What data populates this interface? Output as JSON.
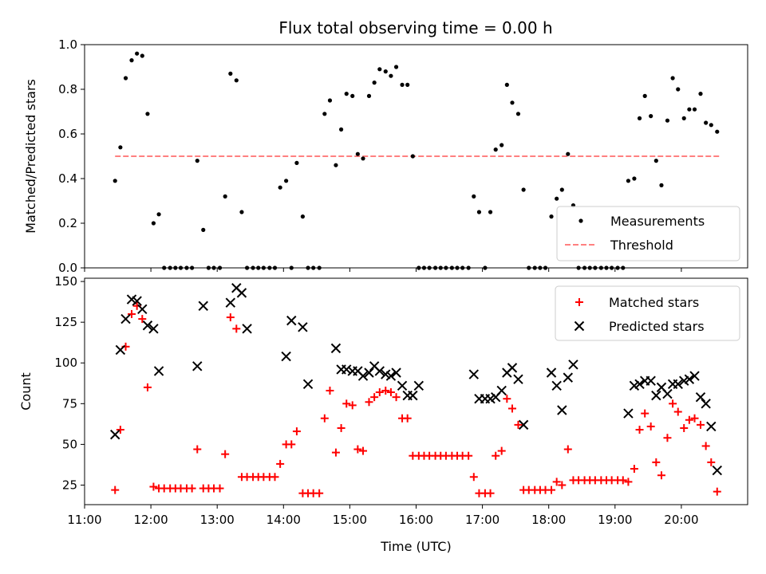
{
  "figure": {
    "title": "Flux total observing time = 0.00 h",
    "colors": {
      "measurement": "#000000",
      "threshold": "#ff8080",
      "matched": "#ff0000",
      "predicted": "#000000"
    }
  },
  "chart_data": [
    {
      "type": "scatter",
      "ylabel": "Matched/Predicted stars",
      "xlim": [
        11.0,
        21.0
      ],
      "ylim": [
        0.0,
        1.0
      ],
      "yticks": [
        0.0,
        0.2,
        0.4,
        0.6,
        0.8,
        1.0
      ],
      "ytick_labels": [
        "0.0",
        "0.2",
        "0.4",
        "0.6",
        "0.8",
        "1.0"
      ],
      "legend_position": "lower-right",
      "series": [
        {
          "name": "Measurements",
          "marker": "dot",
          "x": [
            11.46,
            11.54,
            11.62,
            11.71,
            11.79,
            11.87,
            11.95,
            12.04,
            12.12,
            12.2,
            12.29,
            12.37,
            12.45,
            12.54,
            12.62,
            12.7,
            12.79,
            12.87,
            12.95,
            13.04,
            13.12,
            13.2,
            13.29,
            13.37,
            13.45,
            13.54,
            13.62,
            13.7,
            13.79,
            13.87,
            13.95,
            14.04,
            14.12,
            14.2,
            14.29,
            14.37,
            14.45,
            14.54,
            14.62,
            14.7,
            14.79,
            14.87,
            14.95,
            15.04,
            15.12,
            15.2,
            15.29,
            15.37,
            15.45,
            15.54,
            15.62,
            15.7,
            15.79,
            15.87,
            15.95,
            16.04,
            16.12,
            16.2,
            16.29,
            16.37,
            16.45,
            16.54,
            16.62,
            16.7,
            16.79,
            16.87,
            16.95,
            17.04,
            17.12,
            17.2,
            17.29,
            17.37,
            17.45,
            17.54,
            17.62,
            17.7,
            17.79,
            17.87,
            17.95,
            18.04,
            18.12,
            18.2,
            18.29,
            18.37,
            18.45,
            18.54,
            18.62,
            18.7,
            18.79,
            18.87,
            18.95,
            19.04,
            19.12,
            19.2,
            19.29,
            19.37,
            19.45,
            19.54,
            19.62,
            19.7,
            19.79,
            19.87,
            19.95,
            20.04,
            20.12,
            20.2,
            20.29,
            20.37,
            20.45,
            20.54
          ],
          "y": [
            0.39,
            0.54,
            0.85,
            0.93,
            0.96,
            0.95,
            0.69,
            0.2,
            0.24,
            0.0,
            0.0,
            0.0,
            0.0,
            0.0,
            0.0,
            0.48,
            0.17,
            0.0,
            0.0,
            0.0,
            0.32,
            0.87,
            0.84,
            0.25,
            0.0,
            0.0,
            0.0,
            0.0,
            0.0,
            0.0,
            0.36,
            0.39,
            0.0,
            0.47,
            0.23,
            0.0,
            0.0,
            0.0,
            0.69,
            0.75,
            0.46,
            0.62,
            0.78,
            0.77,
            0.51,
            0.49,
            0.77,
            0.83,
            0.89,
            0.88,
            0.86,
            0.9,
            0.82,
            0.82,
            0.5,
            0.0,
            0.0,
            0.0,
            0.0,
            0.0,
            0.0,
            0.0,
            0.0,
            0.0,
            0.0,
            0.32,
            0.25,
            0.0,
            0.25,
            0.53,
            0.55,
            0.82,
            0.74,
            0.69,
            0.35,
            0.0,
            0.0,
            0.0,
            0.0,
            0.23,
            0.31,
            0.35,
            0.51,
            0.28,
            0.0,
            0.0,
            0.0,
            0.0,
            0.0,
            0.0,
            0.0,
            0.0,
            0.0,
            0.39,
            0.4,
            0.67,
            0.77,
            0.68,
            0.48,
            0.37,
            0.66,
            0.85,
            0.8,
            0.67,
            0.71,
            0.71,
            0.78,
            0.65,
            0.64,
            0.61
          ]
        },
        {
          "name": "Threshold",
          "marker": "dashed-line",
          "x": [
            11.46,
            20.58
          ],
          "y": [
            0.5,
            0.5
          ]
        }
      ]
    },
    {
      "type": "scatter",
      "xlabel": "Time (UTC)",
      "ylabel": "Count",
      "xlim": [
        11.0,
        21.0
      ],
      "ylim": [
        13,
        152
      ],
      "xticks": [
        11,
        12,
        13,
        14,
        15,
        16,
        17,
        18,
        19,
        20
      ],
      "xtick_labels": [
        "11:00",
        "12:00",
        "13:00",
        "14:00",
        "15:00",
        "16:00",
        "17:00",
        "18:00",
        "19:00",
        "20:00"
      ],
      "yticks": [
        25,
        50,
        75,
        100,
        125,
        150
      ],
      "ytick_labels": [
        "25",
        "50",
        "75",
        "100",
        "125",
        "150"
      ],
      "legend_position": "upper-right",
      "series": [
        {
          "name": "Matched stars",
          "marker": "plus",
          "x": [
            11.46,
            11.54,
            11.62,
            11.71,
            11.79,
            11.87,
            11.95,
            12.04,
            12.12,
            12.2,
            12.29,
            12.37,
            12.45,
            12.54,
            12.62,
            12.7,
            12.79,
            12.87,
            12.95,
            13.04,
            13.12,
            13.2,
            13.29,
            13.37,
            13.45,
            13.54,
            13.62,
            13.7,
            13.79,
            13.87,
            13.95,
            14.04,
            14.12,
            14.2,
            14.29,
            14.37,
            14.45,
            14.54,
            14.62,
            14.7,
            14.79,
            14.87,
            14.95,
            15.04,
            15.12,
            15.2,
            15.29,
            15.37,
            15.45,
            15.54,
            15.62,
            15.7,
            15.79,
            15.87,
            15.95,
            16.04,
            16.12,
            16.2,
            16.29,
            16.37,
            16.45,
            16.54,
            16.62,
            16.7,
            16.79,
            16.87,
            16.95,
            17.04,
            17.12,
            17.2,
            17.29,
            17.37,
            17.45,
            17.54,
            17.62,
            17.7,
            17.79,
            17.87,
            17.95,
            18.04,
            18.12,
            18.2,
            18.29,
            18.37,
            18.45,
            18.54,
            18.62,
            18.7,
            18.79,
            18.87,
            18.95,
            19.04,
            19.12,
            19.2,
            19.29,
            19.37,
            19.45,
            19.54,
            19.62,
            19.7,
            19.79,
            19.87,
            19.95,
            20.04,
            20.12,
            20.2,
            20.29,
            20.37,
            20.45,
            20.54
          ],
          "y": [
            22,
            59,
            110,
            130,
            135,
            127,
            85,
            24,
            23,
            23,
            23,
            23,
            23,
            23,
            23,
            47,
            23,
            23,
            23,
            23,
            44,
            128,
            121,
            30,
            30,
            30,
            30,
            30,
            30,
            30,
            38,
            50,
            50,
            58,
            20,
            20,
            20,
            20,
            66,
            83,
            45,
            60,
            75,
            74,
            47,
            46,
            76,
            79,
            82,
            83,
            82,
            79,
            66,
            66,
            43,
            43,
            43,
            43,
            43,
            43,
            43,
            43,
            43,
            43,
            43,
            30,
            20,
            20,
            20,
            43,
            46,
            78,
            72,
            62,
            22,
            22,
            22,
            22,
            22,
            22,
            27,
            25,
            47,
            28,
            28,
            28,
            28,
            28,
            28,
            28,
            28,
            28,
            28,
            27,
            35,
            59,
            69,
            61,
            39,
            31,
            54,
            75,
            70,
            60,
            65,
            66,
            62,
            49,
            39,
            21
          ]
        },
        {
          "name": "Predicted stars",
          "marker": "x",
          "x": [
            11.46,
            11.54,
            11.62,
            11.71,
            11.79,
            11.87,
            11.95,
            12.04,
            12.12,
            12.7,
            12.79,
            13.2,
            13.29,
            13.37,
            13.45,
            14.04,
            14.12,
            14.29,
            14.37,
            14.79,
            14.87,
            14.95,
            15.04,
            15.12,
            15.2,
            15.29,
            15.37,
            15.45,
            15.54,
            15.62,
            15.7,
            15.79,
            15.87,
            15.95,
            16.04,
            16.87,
            16.95,
            17.04,
            17.12,
            17.2,
            17.29,
            17.37,
            17.45,
            17.54,
            17.62,
            18.04,
            18.12,
            18.2,
            18.29,
            18.37,
            19.2,
            19.29,
            19.37,
            19.45,
            19.54,
            19.62,
            19.7,
            19.79,
            19.87,
            19.95,
            20.04,
            20.12,
            20.2,
            20.29,
            20.37,
            20.45,
            20.54
          ],
          "y": [
            56,
            108,
            127,
            139,
            138,
            133,
            123,
            121,
            95,
            98,
            135,
            137,
            146,
            143,
            121,
            104,
            126,
            122,
            87,
            109,
            96,
            96,
            95,
            95,
            92,
            94,
            98,
            95,
            93,
            92,
            94,
            86,
            80,
            80,
            86,
            93,
            78,
            78,
            78,
            79,
            83,
            94,
            97,
            90,
            62,
            94,
            86,
            71,
            91,
            99,
            69,
            86,
            87,
            89,
            89,
            80,
            85,
            81,
            87,
            87,
            89,
            90,
            92,
            79,
            75,
            61,
            34
          ]
        }
      ]
    }
  ]
}
